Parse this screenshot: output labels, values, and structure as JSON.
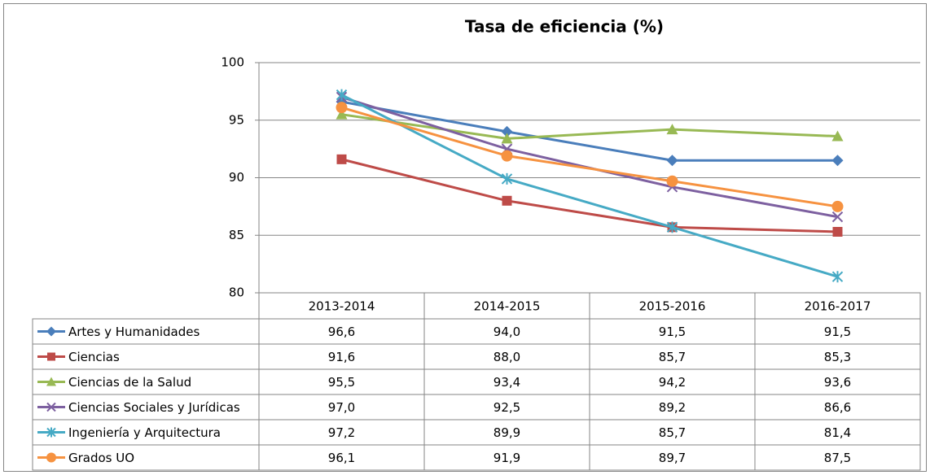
{
  "chart_data": {
    "type": "line",
    "title": "Tasa de eficiencia (%)",
    "categories": [
      "2013-2014",
      "2014-2015",
      "2015-2016",
      "2016-2017"
    ],
    "ylim": [
      80,
      100
    ],
    "yticks": [
      80,
      85,
      90,
      95,
      100
    ],
    "grid": true,
    "series": [
      {
        "name": "Artes y Humanidades",
        "color": "#4a7ebb",
        "marker": "diamond",
        "values": [
          96.6,
          94.0,
          91.5,
          91.5
        ],
        "value_labels": [
          "96,6",
          "94,0",
          "91,5",
          "91,5"
        ]
      },
      {
        "name": "Ciencias",
        "color": "#be4b48",
        "marker": "square",
        "values": [
          91.6,
          88.0,
          85.7,
          85.3
        ],
        "value_labels": [
          "91,6",
          "88,0",
          "85,7",
          "85,3"
        ]
      },
      {
        "name": "Ciencias de la Salud",
        "color": "#98b954",
        "marker": "triangle",
        "values": [
          95.5,
          93.4,
          94.2,
          93.6
        ],
        "value_labels": [
          "95,5",
          "93,4",
          "94,2",
          "93,6"
        ]
      },
      {
        "name": "Ciencias Sociales y Jurídicas",
        "color": "#7d60a0",
        "marker": "x",
        "values": [
          97.0,
          92.5,
          89.2,
          86.6
        ],
        "value_labels": [
          "97,0",
          "92,5",
          "89,2",
          "86,6"
        ]
      },
      {
        "name": "Ingeniería y Arquitectura",
        "color": "#46aac5",
        "marker": "asterisk",
        "values": [
          97.2,
          89.9,
          85.7,
          81.4
        ],
        "value_labels": [
          "97,2",
          "89,9",
          "85,7",
          "81,4"
        ]
      },
      {
        "name": "Grados UO",
        "color": "#f69240",
        "marker": "circle",
        "values": [
          96.1,
          91.9,
          89.7,
          87.5
        ],
        "value_labels": [
          "96,1",
          "91,9",
          "89,7",
          "87,5"
        ]
      }
    ]
  }
}
